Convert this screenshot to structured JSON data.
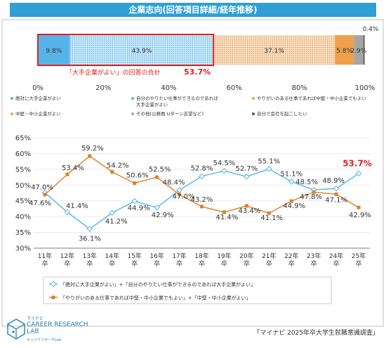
{
  "header": {
    "title": "企業志向(回答項目詳細/経年推移)"
  },
  "stacked_bar": {
    "segments": [
      {
        "label": "絶対に大手企業がよい",
        "value": 9.8,
        "value_label": "9.8%",
        "color": "#56b4e9",
        "pattern": "solid"
      },
      {
        "label": "自分のやりたい仕事ができるのであれば大手企業がよい",
        "value": 43.9,
        "value_label": "43.9%",
        "color": "#56b4e9",
        "pattern": "dots"
      },
      {
        "label": "やりがいのある仕事であれば中堅・中小企業でもよい",
        "value": 37.1,
        "value_label": "37.1%",
        "color": "#f0a04b",
        "pattern": "dots"
      },
      {
        "label": "中堅・中小企業がよい",
        "value": 5.8,
        "value_label": "5.8%",
        "color": "#f0a04b",
        "pattern": "solid"
      },
      {
        "label": "その他(公務員 Uターン志望など)",
        "value": 2.9,
        "value_label": "2.9%",
        "color": "#a6a6a6",
        "pattern": "solid"
      },
      {
        "label": "自分で会社を起こしたい",
        "value": 0.4,
        "value_label": "0.4%",
        "color": "#595959",
        "pattern": "solid"
      }
    ],
    "axis_ticks": [
      "0%",
      "20%",
      "40%",
      "60%",
      "80%",
      "100%"
    ],
    "highlight_note": "「大手企業がよい」の回答の合計",
    "highlight_value": "53.7%"
  },
  "legend": {
    "items": [
      {
        "text": "絶対に大手企業がよい"
      },
      {
        "text": "自分のやりたい仕事ができるのであれば"
      },
      {
        "text": "大手企業がよい"
      },
      {
        "text": "やりがいのある仕事であれば中堅・中小企業でもよい"
      },
      {
        "text": "中堅・中小企業がよい"
      },
      {
        "text": "その他(公務員 Uターン志望など)"
      },
      {
        "text": "自分で会社を起こしたい"
      }
    ]
  },
  "chart_data": {
    "type": "line",
    "categories": [
      "11年卒",
      "12年卒",
      "13年卒",
      "14年卒",
      "15年卒",
      "16年卒",
      "17年卒",
      "18年卒",
      "19年卒",
      "20年卒",
      "21年卒",
      "22年卒",
      "23年卒",
      "24年卒",
      "25年卒"
    ],
    "ylim": [
      30,
      65
    ],
    "yticks": [
      "30%",
      "35%",
      "40%",
      "45%",
      "50%",
      "55%",
      "60%",
      "65%"
    ],
    "series": [
      {
        "name": "「絶対に大手企業がよい」+「自分のやりたい仕事ができるのであれば大手企業がよい」",
        "color": "#56b4e9",
        "values": [
          47.6,
          41.4,
          36.1,
          41.2,
          44.9,
          42.9,
          48.4,
          52.8,
          54.5,
          52.7,
          55.1,
          51.1,
          48.5,
          48.9,
          53.7
        ],
        "labels": [
          "47.6%",
          "41.4%",
          "36.1%",
          "41.2%",
          "44.9%",
          "42.9%",
          "48.4%",
          "52.8%",
          "54.5%",
          "52.7%",
          "55.1%",
          "51.1%",
          "48.5%",
          "48.9%",
          "53.7%"
        ]
      },
      {
        "name": "「やりがいのある仕事であれば中堅・中小企業でもよい」+「中堅・中小企業がよい」",
        "color": "#d9822b",
        "values": [
          47.0,
          53.4,
          59.2,
          54.2,
          50.6,
          52.5,
          47.0,
          43.2,
          41.4,
          43.4,
          41.1,
          44.9,
          47.8,
          47.1,
          42.9
        ],
        "labels": [
          "47.0%",
          "53.4%",
          "59.2%",
          "54.2%",
          "50.6%",
          "52.5%",
          "47.0%",
          "43.2%",
          "41.4%",
          "43.4%",
          "41.1%",
          "44.9%",
          "47.8%",
          "47.1%",
          "42.9%"
        ]
      }
    ],
    "highlight_label": "53.7%"
  },
  "footer": {
    "brand_small": "マイナビ",
    "brand_main_1": "CAREER RESEARCH",
    "brand_main_2": "LAB",
    "brand_sub": "キャリアリサーチLab",
    "source": "「マイナビ 2025年卒大学生就職意識調査」"
  }
}
